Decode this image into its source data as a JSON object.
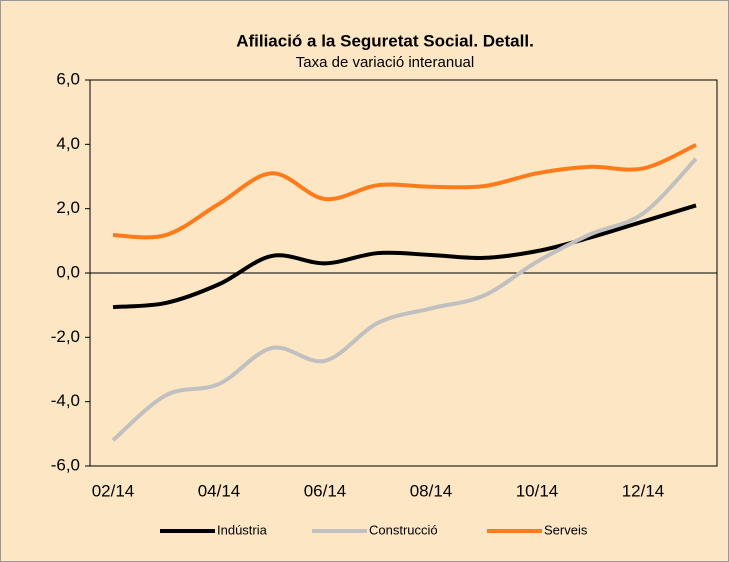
{
  "chart_data": {
    "type": "line",
    "title": "Afiliació a la Seguretat Social. Detall.",
    "subtitle": "Taxa de variació interanual",
    "categories": [
      "02/14",
      null,
      "04/14",
      null,
      "06/14",
      null,
      "08/14",
      null,
      "10/14",
      null,
      "12/14",
      null
    ],
    "series": [
      {
        "name": "Indústria",
        "color": "#000000",
        "values": [
          -1.06,
          -0.93,
          -0.35,
          0.53,
          0.3,
          0.62,
          0.56,
          0.47,
          0.68,
          1.1,
          1.6,
          2.1
        ]
      },
      {
        "name": "Construcció",
        "color": "#c0c0c0",
        "values": [
          -5.2,
          -3.8,
          -3.45,
          -2.33,
          -2.73,
          -1.55,
          -1.1,
          -0.7,
          0.35,
          1.2,
          1.85,
          3.55
        ]
      },
      {
        "name": "Serveis",
        "color": "#ff7a1a",
        "values": [
          1.18,
          1.18,
          2.15,
          3.1,
          2.3,
          2.73,
          2.68,
          2.7,
          3.1,
          3.3,
          3.25,
          3.98
        ]
      }
    ],
    "ylim": [
      -6,
      6
    ],
    "yticks": [
      {
        "value": -6,
        "label": "-6,0"
      },
      {
        "value": -4,
        "label": "-4,0"
      },
      {
        "value": -2,
        "label": "-2,0"
      },
      {
        "value": 0,
        "label": "0,0"
      },
      {
        "value": 2,
        "label": "2,0"
      },
      {
        "value": 4,
        "label": "4,0"
      },
      {
        "value": 6,
        "label": "6,0"
      }
    ],
    "legend": "bottom"
  }
}
